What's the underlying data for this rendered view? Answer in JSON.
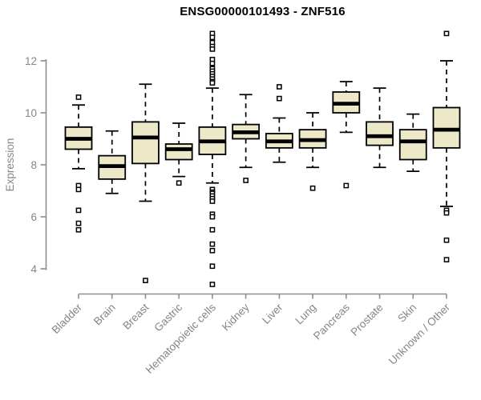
{
  "chart_data": {
    "type": "boxplot",
    "title": "ENSG00000101493 - ZNF516",
    "ylabel": "Expression",
    "xlabel": "",
    "yticks": [
      4,
      6,
      8,
      10,
      12
    ],
    "ylim": [
      3.2,
      13.3
    ],
    "grid": false,
    "x_label_rotation_deg": 45,
    "box_fill": "#EDE8C7",
    "box_stroke": "#000000",
    "median_color": "#000000",
    "outlier_color": "#000000",
    "axis_color": "#8E8E8E",
    "text_color": "#858585",
    "title_color": "#000000",
    "categories": [
      "Bladder",
      "Brain",
      "Breast",
      "Gastric",
      "Hematopoietic cells",
      "Kidney",
      "Liver",
      "Lung",
      "Pancreas",
      "Prostate",
      "Skin",
      "Unknown / Other"
    ],
    "series": [
      {
        "category": "Bladder",
        "whisker_low": 7.85,
        "q1": 8.6,
        "median": 9.0,
        "q3": 9.45,
        "whisker_high": 10.3,
        "outliers": [
          10.6,
          7.2,
          7.05,
          6.25,
          5.75,
          5.5
        ]
      },
      {
        "category": "Brain",
        "whisker_low": 6.9,
        "q1": 7.45,
        "median": 7.95,
        "q3": 8.35,
        "whisker_high": 9.3,
        "outliers": []
      },
      {
        "category": "Breast",
        "whisker_low": 6.6,
        "q1": 8.05,
        "median": 9.05,
        "q3": 9.65,
        "whisker_high": 11.1,
        "outliers": [
          3.55
        ]
      },
      {
        "category": "Gastric",
        "whisker_low": 7.55,
        "q1": 8.2,
        "median": 8.6,
        "q3": 8.8,
        "whisker_high": 9.6,
        "outliers": [
          7.3
        ]
      },
      {
        "category": "Hematopoietic cells",
        "whisker_low": 7.3,
        "q1": 8.4,
        "median": 8.9,
        "q3": 9.45,
        "whisker_high": 10.95,
        "outliers": [
          13.05,
          12.9,
          12.7,
          12.55,
          12.45,
          12.05,
          11.9,
          11.7,
          11.6,
          11.5,
          11.4,
          11.3,
          11.2,
          11.15,
          7.05,
          6.95,
          6.9,
          6.8,
          6.7,
          6.6,
          6.1,
          6.0,
          5.5,
          4.95,
          4.7,
          4.1,
          3.4
        ]
      },
      {
        "category": "Kidney",
        "whisker_low": 7.9,
        "q1": 9.0,
        "median": 9.25,
        "q3": 9.55,
        "whisker_high": 10.7,
        "outliers": [
          7.4
        ]
      },
      {
        "category": "Liver",
        "whisker_low": 8.1,
        "q1": 8.65,
        "median": 8.9,
        "q3": 9.2,
        "whisker_high": 9.8,
        "outliers": [
          11.0,
          10.55
        ]
      },
      {
        "category": "Lung",
        "whisker_low": 7.9,
        "q1": 8.65,
        "median": 8.95,
        "q3": 9.35,
        "whisker_high": 10.0,
        "outliers": [
          7.1
        ]
      },
      {
        "category": "Pancreas",
        "whisker_low": 9.25,
        "q1": 10.0,
        "median": 10.35,
        "q3": 10.8,
        "whisker_high": 11.2,
        "outliers": [
          7.2
        ]
      },
      {
        "category": "Prostate",
        "whisker_low": 7.9,
        "q1": 8.75,
        "median": 9.1,
        "q3": 9.65,
        "whisker_high": 10.95,
        "outliers": []
      },
      {
        "category": "Skin",
        "whisker_low": 7.75,
        "q1": 8.2,
        "median": 8.9,
        "q3": 9.35,
        "whisker_high": 9.95,
        "outliers": []
      },
      {
        "category": "Unknown / Other",
        "whisker_low": 6.4,
        "q1": 8.65,
        "median": 9.35,
        "q3": 10.2,
        "whisker_high": 12.0,
        "outliers": [
          13.05,
          6.25,
          6.15,
          5.1,
          4.35
        ]
      }
    ]
  }
}
